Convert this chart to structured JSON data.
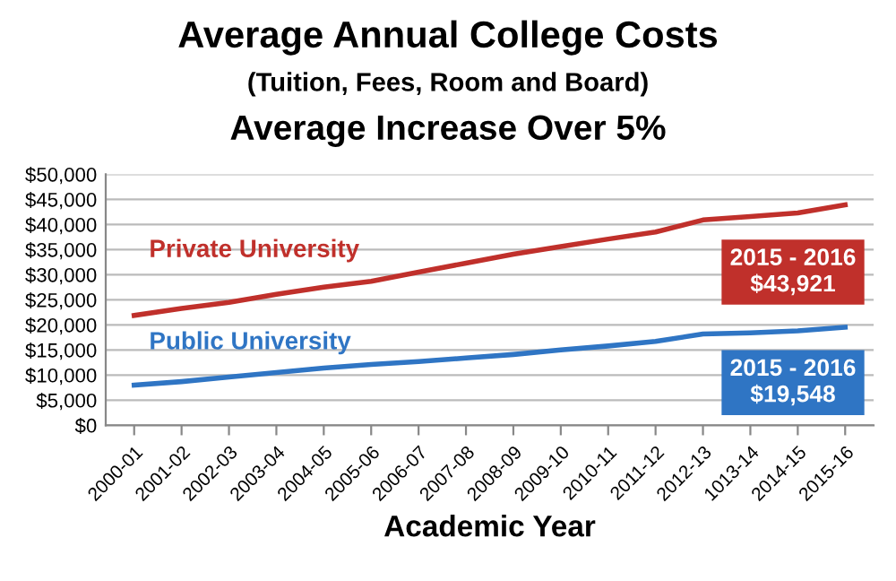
{
  "chart_data": {
    "type": "line",
    "title": "Average Annual College Costs",
    "subtitle": "(Tuition, Fees, Room and Board)",
    "xlabel": "Academic Year",
    "categories": [
      "2000-01",
      "2001-02",
      "2002-03",
      "2003-04",
      "2004-05",
      "2005-06",
      "2006-07",
      "2007-08",
      "2008-09",
      "2009-10",
      "2010-11",
      "2011-12",
      "2012-13",
      "1013-14",
      "2014-15",
      "2015-16"
    ],
    "series": [
      {
        "name": "Private University",
        "color": "#c0302b",
        "values": [
          21900,
          23300,
          24500,
          26100,
          27500,
          28700,
          30500,
          32300,
          34100,
          35600,
          37100,
          38500,
          40900,
          41600,
          42300,
          43921
        ]
      },
      {
        "name": "Public University",
        "color": "#2f75c4",
        "values": [
          8000,
          8700,
          9600,
          10500,
          11400,
          12100,
          12700,
          13400,
          14100,
          15000,
          15800,
          16700,
          18200,
          18400,
          18800,
          19548
        ]
      }
    ],
    "annotations": [
      "Average Increase Over 5%",
      "2015 - 2016\n$43,921",
      "2015 - 2016\n$19,548"
    ],
    "ylim": [
      0,
      50000
    ],
    "yticks": [
      {
        "value": 0,
        "label": "$0"
      },
      {
        "value": 5000,
        "label": "$5,000"
      },
      {
        "value": 10000,
        "label": "$10,000"
      },
      {
        "value": 15000,
        "label": "$15,000"
      },
      {
        "value": 20000,
        "label": "$20,000"
      },
      {
        "value": 25000,
        "label": "$25,000"
      },
      {
        "value": 30000,
        "label": "$30,000"
      },
      {
        "value": 35000,
        "label": "$35,000"
      },
      {
        "value": 40000,
        "label": "$40,000"
      },
      {
        "value": 45000,
        "label": "$45,000"
      },
      {
        "value": 50000,
        "label": "$50,000"
      }
    ],
    "grid": "y",
    "legend": false,
    "marker": "none",
    "line_style": "solid"
  }
}
